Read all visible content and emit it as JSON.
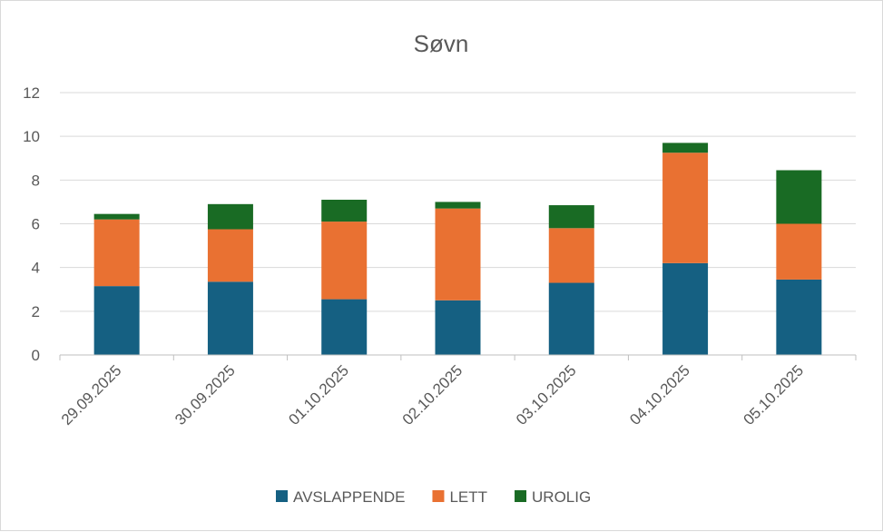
{
  "chart_data": {
    "type": "bar",
    "stacked": true,
    "title": "Søvn",
    "xlabel": "",
    "ylabel": "",
    "ylim": [
      0,
      12
    ],
    "yticks": [
      0,
      2,
      4,
      6,
      8,
      10,
      12
    ],
    "grid": true,
    "legend_position": "bottom",
    "categories": [
      "29.09.2025",
      "30.09.2025",
      "01.10.2025",
      "02.10.2025",
      "03.10.2025",
      "04.10.2025",
      "05.10.2025"
    ],
    "series": [
      {
        "name": "AVSLAPPENDE",
        "color": "#156082",
        "values": [
          3.15,
          3.35,
          2.55,
          2.5,
          3.3,
          4.2,
          3.45
        ]
      },
      {
        "name": "LETT",
        "color": "#e97132",
        "values": [
          3.05,
          2.4,
          3.55,
          4.2,
          2.5,
          5.05,
          2.55
        ]
      },
      {
        "name": "UROLIG",
        "color": "#196b24",
        "values": [
          0.25,
          1.15,
          1.0,
          0.3,
          1.05,
          0.45,
          2.45
        ]
      }
    ]
  }
}
